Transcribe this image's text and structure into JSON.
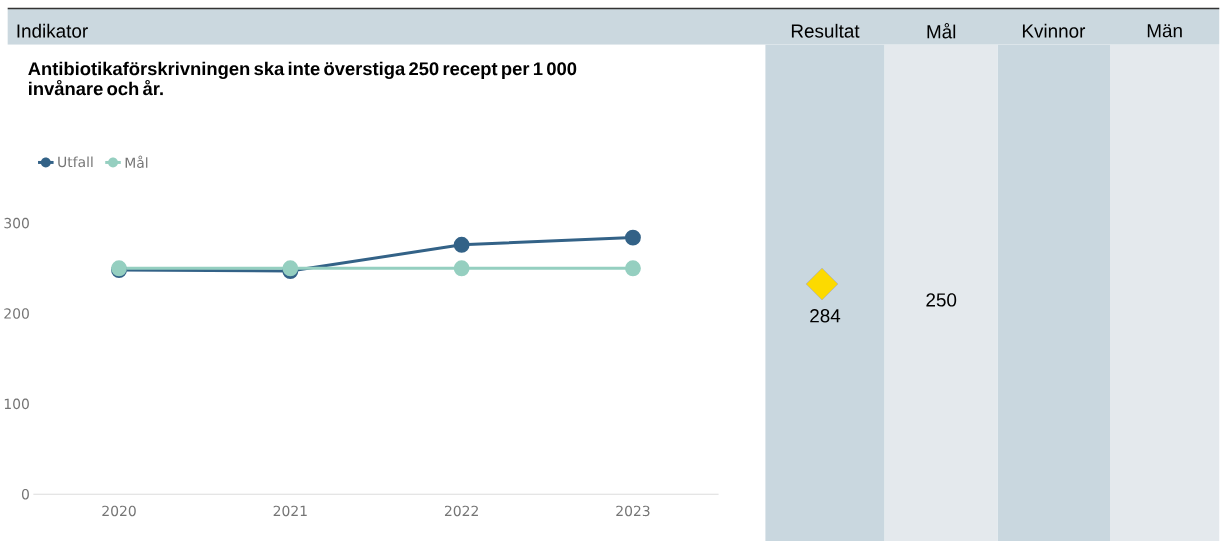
{
  "chart_data": {
    "type": "line",
    "title": "Antibiotikaförskrivningen ska inte överstiga 250 recept per 1 000 invånare och år.",
    "categories": [
      "2020",
      "2021",
      "2022",
      "2023"
    ],
    "series": [
      {
        "name": "Utfall",
        "color": "#336287",
        "values": [
          248,
          247,
          276,
          284
        ]
      },
      {
        "name": "Mål",
        "color": "#95cfc0",
        "values": [
          250,
          250,
          250,
          250
        ]
      }
    ],
    "ylim": [
      0,
      300
    ],
    "yticks": [
      0,
      100,
      200,
      300
    ],
    "legend": "top left",
    "marker": "circle",
    "annotations": [
      "Indikator",
      "Resultat",
      "Mål",
      "Kvinnor",
      "Män",
      "284",
      "250"
    ]
  }
}
